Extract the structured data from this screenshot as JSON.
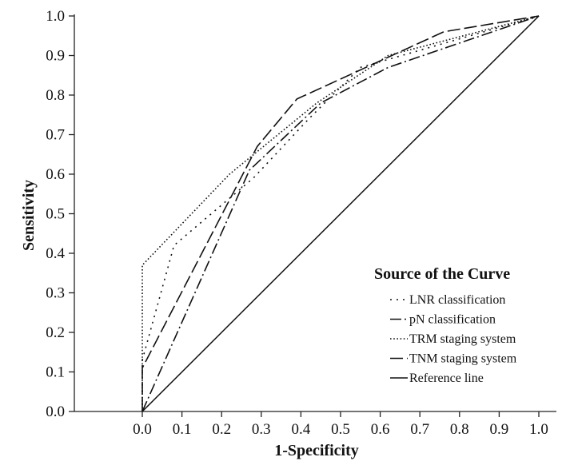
{
  "chart_data": {
    "type": "line",
    "title": "",
    "xlabel": "1-Specificity",
    "ylabel": "Sensitivity",
    "xlim": [
      0,
      1
    ],
    "ylim": [
      0,
      1
    ],
    "x_ticks": [
      "0.0",
      "0.1",
      "0.2",
      "0.3",
      "0.4",
      "0.5",
      "0.6",
      "0.7",
      "0.8",
      "0.9",
      "1.0"
    ],
    "y_ticks": [
      "0.0",
      "0.1",
      "0.2",
      "0.3",
      "0.4",
      "0.5",
      "0.6",
      "0.7",
      "0.8",
      "0.9",
      "1.0"
    ],
    "grid": false,
    "legend_title": "Source of the Curve",
    "legend_position": "bottom-right",
    "line_color": "#111111",
    "series": [
      {
        "name": "LNR classification",
        "style": "sparse-dotted",
        "points": [
          [
            0,
            0
          ],
          [
            0,
            0.13
          ],
          [
            0.08,
            0.42
          ],
          [
            0.28,
            0.59
          ],
          [
            0.42,
            0.74
          ],
          [
            0.55,
            0.87
          ],
          [
            1,
            1
          ]
        ]
      },
      {
        "name": "pN classification",
        "style": "dash-dot",
        "points": [
          [
            0,
            0
          ],
          [
            0.27,
            0.61
          ],
          [
            0.45,
            0.78
          ],
          [
            0.62,
            0.87
          ],
          [
            1,
            1
          ]
        ]
      },
      {
        "name": "TRM staging system",
        "style": "dotted",
        "points": [
          [
            0,
            0
          ],
          [
            0,
            0.37
          ],
          [
            0.22,
            0.6
          ],
          [
            0.44,
            0.78
          ],
          [
            0.62,
            0.9
          ],
          [
            1,
            1
          ]
        ]
      },
      {
        "name": "TNM staging system",
        "style": "dashed",
        "points": [
          [
            0,
            0
          ],
          [
            0,
            0.11
          ],
          [
            0.29,
            0.67
          ],
          [
            0.39,
            0.79
          ],
          [
            0.76,
            0.96
          ],
          [
            1,
            1
          ]
        ]
      },
      {
        "name": "Reference line",
        "style": "solid",
        "points": [
          [
            0,
            0
          ],
          [
            1,
            1
          ]
        ]
      }
    ]
  }
}
